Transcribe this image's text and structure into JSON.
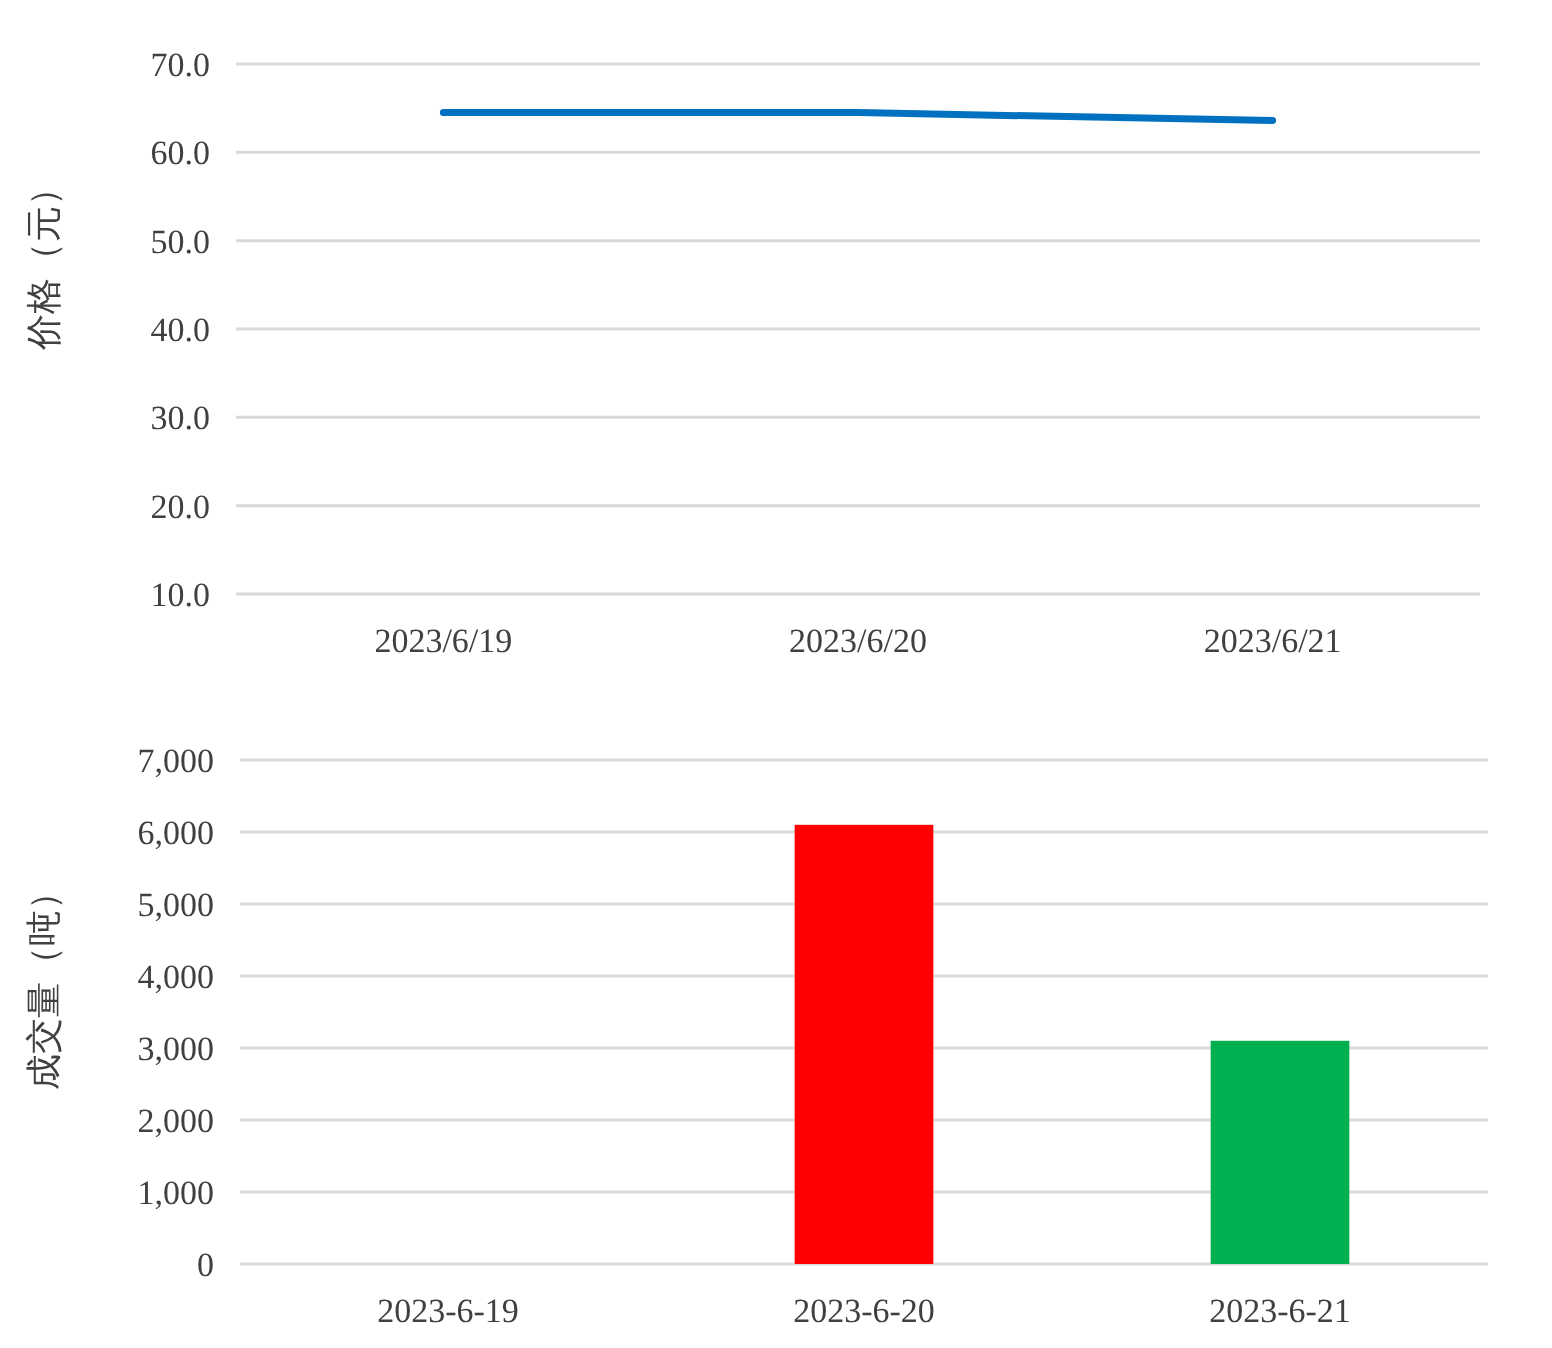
{
  "chart_data": [
    {
      "type": "line",
      "categories": [
        "2023/6/19",
        "2023/6/20",
        "2023/6/21"
      ],
      "series": [
        {
          "color": "#0070c0",
          "values": [
            64.5,
            64.5,
            63.6
          ]
        }
      ],
      "ylabel": "价格（元）",
      "ylim": [
        10,
        70
      ],
      "yticks": [
        {
          "value": 10,
          "label": "10.0"
        },
        {
          "value": 20,
          "label": "20.0"
        },
        {
          "value": 30,
          "label": "30.0"
        },
        {
          "value": 40,
          "label": "40.0"
        },
        {
          "value": 50,
          "label": "50.0"
        },
        {
          "value": 60,
          "label": "60.0"
        },
        {
          "value": 70,
          "label": "70.0"
        }
      ],
      "grid": "y",
      "marker": "none",
      "line_style": "solid"
    },
    {
      "type": "bar",
      "categories": [
        "2023-6-19",
        "2023-6-20",
        "2023-6-21"
      ],
      "values": [
        null,
        6100,
        3100
      ],
      "colors": [
        null,
        "#ff0000",
        "#00b050"
      ],
      "ylabel": "成交量（吨）",
      "ylim": [
        0,
        7000
      ],
      "yticks": [
        0,
        {
          "value": 1000,
          "label": "1,000"
        },
        {
          "value": 2000,
          "label": "2,000"
        },
        {
          "value": 3000,
          "label": "3,000"
        },
        {
          "value": 4000,
          "label": "4,000"
        },
        {
          "value": 5000,
          "label": "5,000"
        },
        {
          "value": 6000,
          "label": "6,000"
        },
        {
          "value": 7000,
          "label": "7,000"
        }
      ],
      "grid": "y"
    }
  ]
}
